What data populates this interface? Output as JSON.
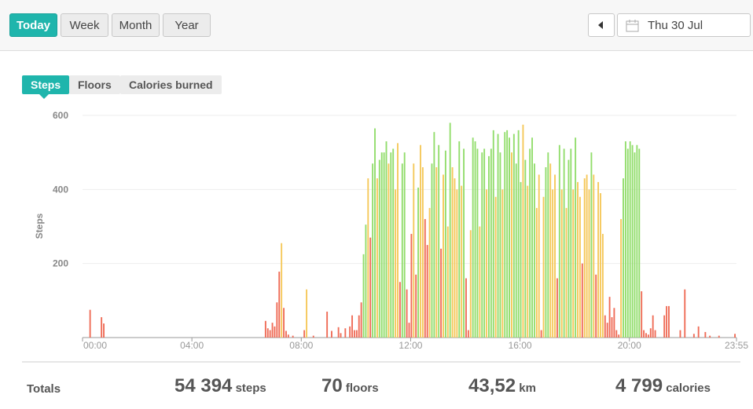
{
  "toolbar": {
    "ranges": [
      "Today",
      "Week",
      "Month",
      "Year"
    ],
    "date": "Thu 30 Jul"
  },
  "tabs": [
    "Steps",
    "Floors",
    "Calories burned"
  ],
  "chart_data": {
    "type": "bar",
    "ylabel": "Steps",
    "x": [
      15,
      40,
      45,
      400,
      405,
      410,
      415,
      420,
      425,
      430,
      435,
      440,
      445,
      450,
      460,
      485,
      490,
      505,
      535,
      545,
      560,
      565,
      575,
      585,
      590,
      595,
      600,
      605,
      610,
      615,
      620,
      625,
      630,
      635,
      640,
      645,
      650,
      655,
      660,
      665,
      670,
      675,
      680,
      685,
      690,
      695,
      700,
      705,
      710,
      715,
      720,
      725,
      730,
      735,
      740,
      745,
      750,
      755,
      760,
      765,
      770,
      775,
      780,
      785,
      790,
      795,
      800,
      805,
      810,
      815,
      820,
      825,
      830,
      835,
      840,
      845,
      850,
      855,
      860,
      865,
      870,
      875,
      880,
      885,
      890,
      895,
      900,
      905,
      910,
      915,
      920,
      925,
      930,
      935,
      940,
      945,
      950,
      955,
      960,
      965,
      970,
      975,
      980,
      985,
      990,
      995,
      1000,
      1005,
      1010,
      1015,
      1020,
      1025,
      1030,
      1035,
      1040,
      1045,
      1050,
      1055,
      1060,
      1065,
      1070,
      1075,
      1080,
      1085,
      1090,
      1095,
      1100,
      1105,
      1110,
      1115,
      1120,
      1125,
      1130,
      1135,
      1140,
      1145,
      1150,
      1155,
      1160,
      1165,
      1170,
      1175,
      1180,
      1185,
      1190,
      1195,
      1200,
      1205,
      1210,
      1215,
      1220,
      1225,
      1230,
      1235,
      1240,
      1245,
      1250,
      1255,
      1275,
      1280,
      1285,
      1310,
      1320,
      1340,
      1350,
      1365,
      1375,
      1395,
      1430
    ],
    "values": [
      75,
      55,
      38,
      45,
      25,
      20,
      40,
      30,
      95,
      178,
      255,
      80,
      18,
      8,
      5,
      20,
      130,
      5,
      70,
      18,
      28,
      12,
      25,
      30,
      60,
      20,
      20,
      60,
      95,
      225,
      305,
      430,
      270,
      470,
      565,
      430,
      480,
      500,
      500,
      530,
      470,
      500,
      510,
      400,
      525,
      150,
      470,
      500,
      130,
      40,
      280,
      470,
      170,
      405,
      520,
      460,
      320,
      250,
      350,
      470,
      555,
      460,
      520,
      240,
      440,
      505,
      300,
      580,
      460,
      430,
      400,
      530,
      410,
      510,
      160,
      20,
      290,
      540,
      530,
      510,
      300,
      500,
      510,
      400,
      490,
      510,
      560,
      380,
      550,
      500,
      400,
      555,
      560,
      540,
      500,
      550,
      470,
      560,
      420,
      575,
      480,
      410,
      510,
      540,
      470,
      350,
      440,
      20,
      380,
      460,
      500,
      470,
      400,
      440,
      160,
      520,
      400,
      510,
      350,
      480,
      510,
      400,
      540,
      420,
      380,
      200,
      430,
      440,
      400,
      500,
      440,
      170,
      420,
      390,
      280,
      60,
      40,
      110,
      55,
      80,
      20,
      8,
      320,
      430,
      530,
      510,
      530,
      520,
      500,
      520,
      510,
      125,
      20,
      12,
      8,
      25,
      60,
      20,
      60,
      85,
      85,
      20,
      130,
      10,
      30,
      15,
      5,
      5,
      10
    ],
    "colors": [
      "#ef6c57",
      "#ef6c57",
      "#ef6c57",
      "#ef6c57",
      "#ef6c57",
      "#ef6c57",
      "#ef6c57",
      "#ef6c57",
      "#ef6c57",
      "#ef6c57",
      "#f5c85a",
      "#ef6c57",
      "#ef6c57",
      "#ef6c57",
      "#ef6c57",
      "#ef6c57",
      "#f5c85a",
      "#ef6c57",
      "#ef6c57",
      "#ef6c57",
      "#ef6c57",
      "#ef6c57",
      "#ef6c57",
      "#ef6c57",
      "#ef6c57",
      "#ef6c57",
      "#ef6c57",
      "#ef6c57",
      "#ef6c57",
      "#92dd6c",
      "#92dd6c",
      "#f5c85a",
      "#ef6c57",
      "#92dd6c",
      "#92dd6c",
      "#f5c85a",
      "#92dd6c",
      "#92dd6c",
      "#92dd6c",
      "#92dd6c",
      "#f5c85a",
      "#92dd6c",
      "#92dd6c",
      "#f5c85a",
      "#f5c85a",
      "#ef6c57",
      "#92dd6c",
      "#92dd6c",
      "#ef6c57",
      "#ef6c57",
      "#ef6c57",
      "#f5c85a",
      "#ef6c57",
      "#92dd6c",
      "#f5c85a",
      "#f5c85a",
      "#ef6c57",
      "#ef6c57",
      "#f5c85a",
      "#92dd6c",
      "#92dd6c",
      "#f5c85a",
      "#92dd6c",
      "#ef6c57",
      "#f5c85a",
      "#92dd6c",
      "#f5c85a",
      "#92dd6c",
      "#f5c85a",
      "#f5c85a",
      "#f5c85a",
      "#92dd6c",
      "#f5c85a",
      "#92dd6c",
      "#ef6c57",
      "#ef6c57",
      "#f5c85a",
      "#92dd6c",
      "#92dd6c",
      "#92dd6c",
      "#f5c85a",
      "#92dd6c",
      "#92dd6c",
      "#f5c85a",
      "#92dd6c",
      "#92dd6c",
      "#92dd6c",
      "#f5c85a",
      "#92dd6c",
      "#92dd6c",
      "#f5c85a",
      "#92dd6c",
      "#92dd6c",
      "#92dd6c",
      "#f5c85a",
      "#92dd6c",
      "#92dd6c",
      "#92dd6c",
      "#92dd6c",
      "#f5c85a",
      "#92dd6c",
      "#f5c85a",
      "#92dd6c",
      "#92dd6c",
      "#92dd6c",
      "#f5c85a",
      "#f5c85a",
      "#ef6c57",
      "#f5c85a",
      "#92dd6c",
      "#92dd6c",
      "#f5c85a",
      "#f5c85a",
      "#f5c85a",
      "#ef6c57",
      "#92dd6c",
      "#f5c85a",
      "#92dd6c",
      "#f5c85a",
      "#92dd6c",
      "#92dd6c",
      "#f5c85a",
      "#92dd6c",
      "#f5c85a",
      "#f5c85a",
      "#ef6c57",
      "#f5c85a",
      "#f5c85a",
      "#f5c85a",
      "#92dd6c",
      "#f5c85a",
      "#ef6c57",
      "#f5c85a",
      "#f5c85a",
      "#f5c85a",
      "#ef6c57",
      "#ef6c57",
      "#ef6c57",
      "#ef6c57",
      "#ef6c57",
      "#ef6c57",
      "#ef6c57",
      "#f5c85a",
      "#92dd6c",
      "#92dd6c",
      "#92dd6c",
      "#92dd6c",
      "#92dd6c",
      "#92dd6c",
      "#92dd6c",
      "#92dd6c",
      "#ef6c57",
      "#ef6c57",
      "#ef6c57",
      "#ef6c57",
      "#ef6c57",
      "#ef6c57",
      "#ef6c57",
      "#ef6c57",
      "#ef6c57",
      "#ef6c57",
      "#ef6c57",
      "#ef6c57",
      "#ef6c57",
      "#ef6c57",
      "#ef6c57",
      "#ef6c57",
      "#ef6c57",
      "#ef6c57"
    ],
    "xlim": [
      0,
      1435
    ],
    "xticks": [
      {
        "value": 0,
        "label": "00:00"
      },
      {
        "value": 240,
        "label": "04:00"
      },
      {
        "value": 480,
        "label": "08:00"
      },
      {
        "value": 720,
        "label": "12:00"
      },
      {
        "value": 960,
        "label": "16:00"
      },
      {
        "value": 1200,
        "label": "20:00"
      },
      {
        "value": 1435,
        "label": "23:55"
      }
    ],
    "ylim": [
      0,
      600
    ],
    "yticks": [
      200,
      400,
      600
    ],
    "grid": true
  },
  "totals": {
    "label": "Totals",
    "items": [
      {
        "value": "54 394",
        "unit": "steps"
      },
      {
        "value": "70",
        "unit": "floors"
      },
      {
        "value": "43,52",
        "unit": "km"
      },
      {
        "value": "4 799",
        "unit": "calories"
      }
    ]
  }
}
